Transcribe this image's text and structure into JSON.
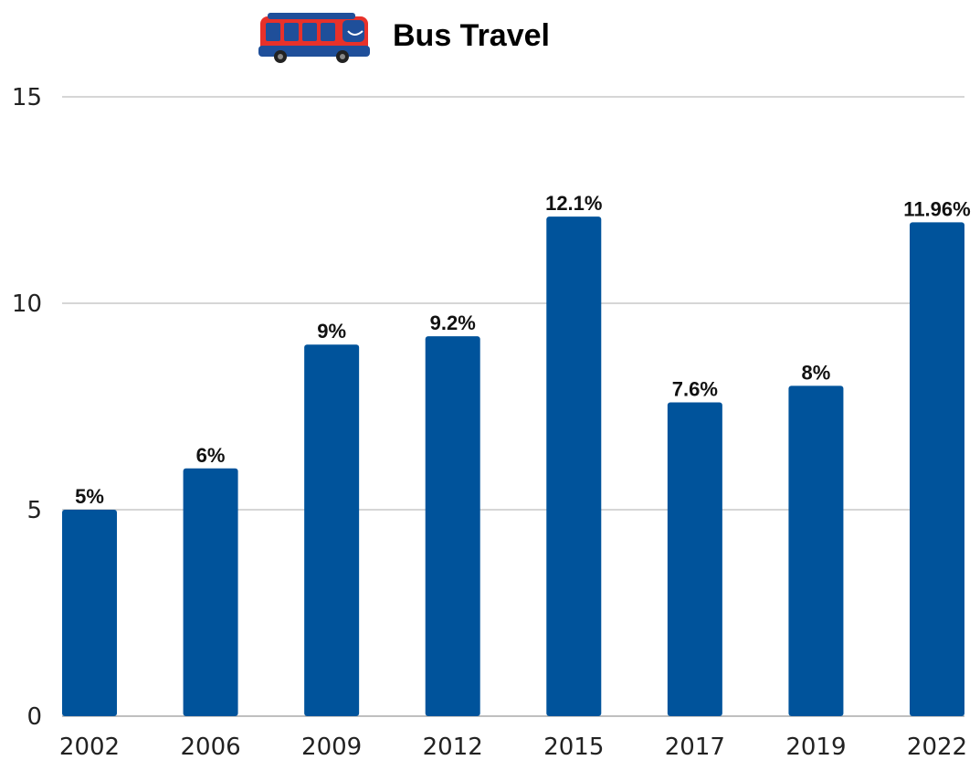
{
  "chart_data": {
    "type": "bar",
    "title": "Bus Travel",
    "title_icon": "bus-icon",
    "categories": [
      "2002",
      "2006",
      "2009",
      "2012",
      "2015",
      "2017",
      "2019",
      "2022"
    ],
    "values": [
      5,
      6,
      9,
      9.2,
      12.1,
      7.6,
      8,
      11.96
    ],
    "data_labels": [
      "5%",
      "6%",
      "9%",
      "9.2%",
      "12.1%",
      "7.6%",
      "8%",
      "11.96%"
    ],
    "yticks": [
      "0",
      "5",
      "10",
      "15"
    ],
    "ylim": [
      0,
      15
    ],
    "xlabel": "",
    "ylabel": "",
    "grid": true,
    "legend": "none",
    "colors": {
      "bar": "#00539b",
      "grid": "#c8c8c8",
      "axis": "#bfbfbf",
      "bus_body": "#e8312a",
      "bus_window": "#1f4f9a"
    }
  }
}
